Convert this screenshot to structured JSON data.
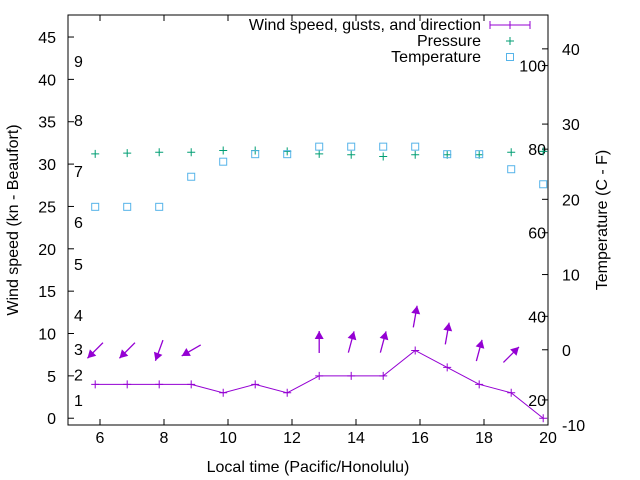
{
  "chart_data": {
    "type": "line",
    "xlabel": "Local time (Pacific/Honolulu)",
    "ylabel": "Wind speed (kn - Beaufort)",
    "y2label": "Temperature (C - F)",
    "xlim": [
      5,
      20
    ],
    "ylim": [
      -0.8,
      47.6
    ],
    "y2lim": [
      -10,
      44.5
    ],
    "xticks": [
      6,
      8,
      10,
      12,
      14,
      16,
      18,
      20
    ],
    "yticks": [
      0,
      5,
      10,
      15,
      20,
      25,
      30,
      35,
      40,
      45
    ],
    "y2ticks": [
      -10,
      0,
      10,
      20,
      30,
      40
    ],
    "fahrenheit_labels": [
      20,
      40,
      60,
      80,
      100
    ],
    "beaufort_labels": [
      {
        "label": "1",
        "kn": 1
      },
      {
        "label": "2",
        "kn": 4
      },
      {
        "label": "3",
        "kn": 7
      },
      {
        "label": "4",
        "kn": 11
      },
      {
        "label": "5",
        "kn": 17
      },
      {
        "label": "6",
        "kn": 22
      },
      {
        "label": "7",
        "kn": 28
      },
      {
        "label": "8",
        "kn": 34
      },
      {
        "label": "9",
        "kn": 41
      }
    ],
    "legend": {
      "placement": "top-right",
      "entries": [
        "Wind speed, gusts, and direction",
        "Pressure",
        "Temperature"
      ]
    },
    "x": [
      5.85,
      6.85,
      7.85,
      8.85,
      9.85,
      10.85,
      11.85,
      12.85,
      13.85,
      14.85,
      15.85,
      16.85,
      17.85,
      18.85,
      19.85
    ],
    "series": [
      {
        "name": "Wind speed",
        "color": "#9400d3",
        "values": [
          4,
          4,
          4,
          4,
          3,
          4,
          3,
          5,
          5,
          5,
          8,
          6,
          4,
          3,
          0
        ]
      },
      {
        "name": "Gusts",
        "color": "#9400d3",
        "values": [
          8,
          8,
          8,
          8,
          null,
          null,
          null,
          9,
          9,
          9,
          12,
          10,
          8,
          7.5,
          null
        ],
        "direction_deg": [
          225,
          225,
          200,
          240,
          null,
          null,
          null,
          0,
          15,
          15,
          10,
          10,
          15,
          45,
          null
        ]
      },
      {
        "name": "Pressure",
        "color": "#009e73",
        "values": [
          31.2,
          31.3,
          31.4,
          31.4,
          31.6,
          31.6,
          31.5,
          31.2,
          31.1,
          30.9,
          31.1,
          31.1,
          31.1,
          31.4,
          31.5
        ]
      },
      {
        "name": "Temperature",
        "color": "#56b4e9",
        "axis": "y2",
        "values": [
          19,
          19,
          19,
          23,
          25,
          26,
          26,
          27,
          27,
          27,
          27,
          26,
          26,
          24,
          22
        ]
      }
    ]
  }
}
